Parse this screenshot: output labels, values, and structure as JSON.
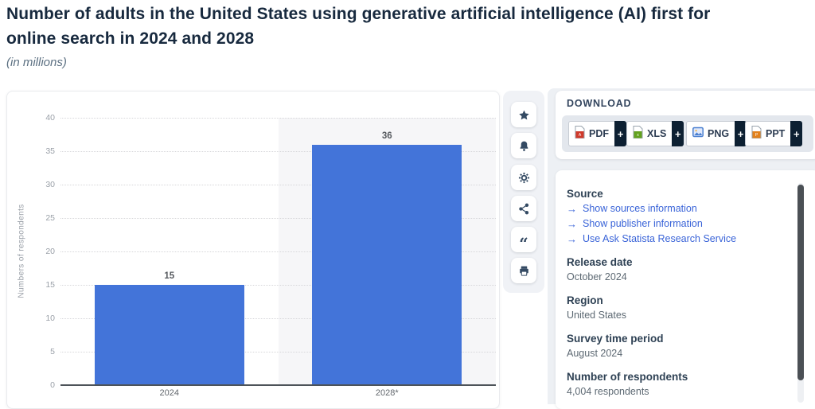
{
  "page": {
    "title": "Number of adults in the United States using generative artificial intelligence (AI) first for\nonline search in 2024 and 2028",
    "subtitle": "(in millions)"
  },
  "chart_data": {
    "type": "bar",
    "title": "Number of adults in the United States using generative artificial intelligence (AI) first for online search in 2024 and 2028",
    "subtitle": "(in millions)",
    "categories": [
      "2024",
      "2028*"
    ],
    "values": [
      15,
      36
    ],
    "xlabel": "",
    "ylabel": "Numbers of respondents",
    "ylim": [
      0,
      40
    ],
    "yticks": [
      0,
      5,
      10,
      15,
      20,
      25,
      30,
      35,
      40
    ],
    "grid": true,
    "bar_color": "#4374d9",
    "highlight_band_category": "2028*"
  },
  "action_bar": {
    "items": [
      {
        "name": "favorite",
        "icon": "star-icon"
      },
      {
        "name": "notifications",
        "icon": "bell-icon"
      },
      {
        "name": "settings",
        "icon": "gear-icon"
      },
      {
        "name": "share",
        "icon": "share-icon"
      },
      {
        "name": "cite",
        "icon": "quote-icon",
        "glyph": "“"
      },
      {
        "name": "print",
        "icon": "printer-icon"
      }
    ]
  },
  "download": {
    "label": "DOWNLOAD",
    "plus": "+",
    "buttons": [
      {
        "label": "PDF",
        "icon": "pdf-file-icon",
        "color": "#cf3a2b"
      },
      {
        "label": "XLS",
        "icon": "xls-file-icon",
        "color": "#63a21e"
      },
      {
        "label": "PNG",
        "icon": "png-image-icon",
        "color": "#4a7fd0"
      },
      {
        "label": "PPT",
        "icon": "ppt-file-icon",
        "color": "#e2811c"
      }
    ]
  },
  "info_panel": {
    "link_arrow": "→",
    "sections": [
      {
        "heading": "Source",
        "links": [
          "Show sources information",
          "Show publisher information",
          "Use Ask Statista Research Service"
        ]
      },
      {
        "heading": "Release date",
        "value": "October 2024"
      },
      {
        "heading": "Region",
        "value": "United States"
      },
      {
        "heading": "Survey time period",
        "value": "August 2024"
      },
      {
        "heading": "Number of respondents",
        "value": "4,004 respondents"
      }
    ]
  },
  "colors": {
    "bar": "#4374d9",
    "link": "#3a64d8",
    "navy_text": "#17293e",
    "icon_navy": "#344a63",
    "band": "#f6f6f8",
    "panel_bg": "#edf0f4"
  }
}
